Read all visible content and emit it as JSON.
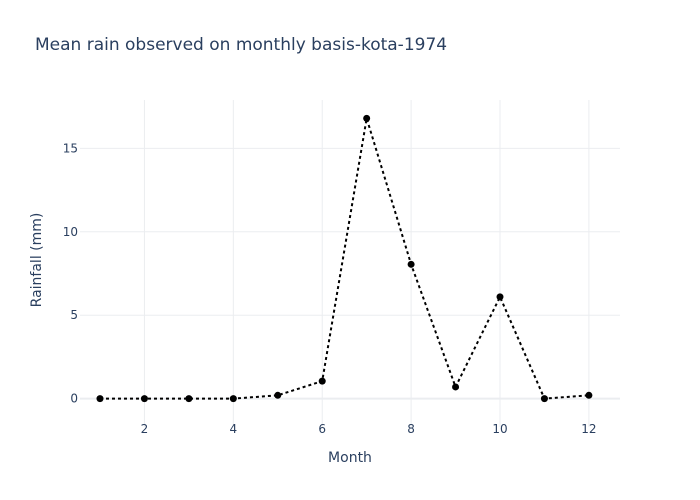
{
  "chart_data": {
    "type": "line",
    "title": "Mean rain observed on monthly basis-kota-1974",
    "xlabel": "Month",
    "ylabel": "Rainfall (mm)",
    "x": [
      1,
      2,
      3,
      4,
      5,
      6,
      7,
      8,
      9,
      10,
      11,
      12
    ],
    "y": [
      0.0,
      0.0,
      0.0,
      0.0,
      0.2,
      1.05,
      16.8,
      8.05,
      0.7,
      6.1,
      0.0,
      0.2
    ],
    "xlim": [
      0.55,
      12.7
    ],
    "ylim": [
      -1.7,
      17.9
    ],
    "xticks": [
      2,
      4,
      6,
      8,
      10,
      12
    ],
    "yticks": [
      0,
      5,
      10,
      15
    ],
    "grid": true,
    "line_color": "#000000",
    "line_style": "dotted",
    "marker": "circle"
  }
}
